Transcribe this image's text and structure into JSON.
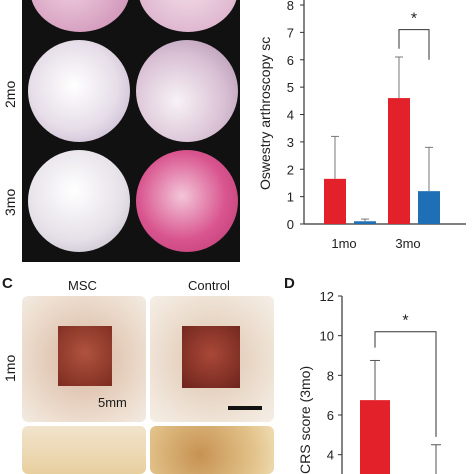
{
  "panel_a": {
    "row_labels": [
      "2mo",
      "3mo"
    ]
  },
  "panel_c": {
    "letter": "C",
    "col_labels": [
      "MSC",
      "Control"
    ],
    "row_labels": [
      "1mo"
    ],
    "scale_label": "5mm"
  },
  "panel_d": {
    "letter": "D"
  },
  "colors": {
    "msc": "#e3212a",
    "control": "#1f6fb7"
  },
  "chart_data": [
    {
      "type": "bar",
      "ylabel": "Oswestry arthroscopy sc",
      "categories": [
        "1mo",
        "3mo"
      ],
      "series": [
        {
          "values": [
            1.65,
            4.6
          ],
          "errors": [
            1.55,
            1.5
          ],
          "color": "#e3212a"
        },
        {
          "values": [
            0.1,
            1.2
          ],
          "errors": [
            0.08,
            1.6
          ],
          "color": "#1f6fb7"
        }
      ],
      "ylim": [
        0,
        8
      ],
      "yticks": [
        "0",
        "1",
        "2",
        "3",
        "4",
        "5",
        "6",
        "7",
        "8"
      ],
      "significance": "*",
      "grid": false
    },
    {
      "type": "bar",
      "ylabel": "CRS score (3mo)",
      "categories": [
        ""
      ],
      "series": [
        {
          "values": [
            6.75
          ],
          "errors": [
            2.0
          ],
          "color": "#e3212a"
        }
      ],
      "control_error_top": 4.5,
      "ylim": [
        0,
        12
      ],
      "yticks": [
        "4",
        "6",
        "8",
        "10",
        "12"
      ],
      "significance": "*",
      "grid": false
    }
  ]
}
